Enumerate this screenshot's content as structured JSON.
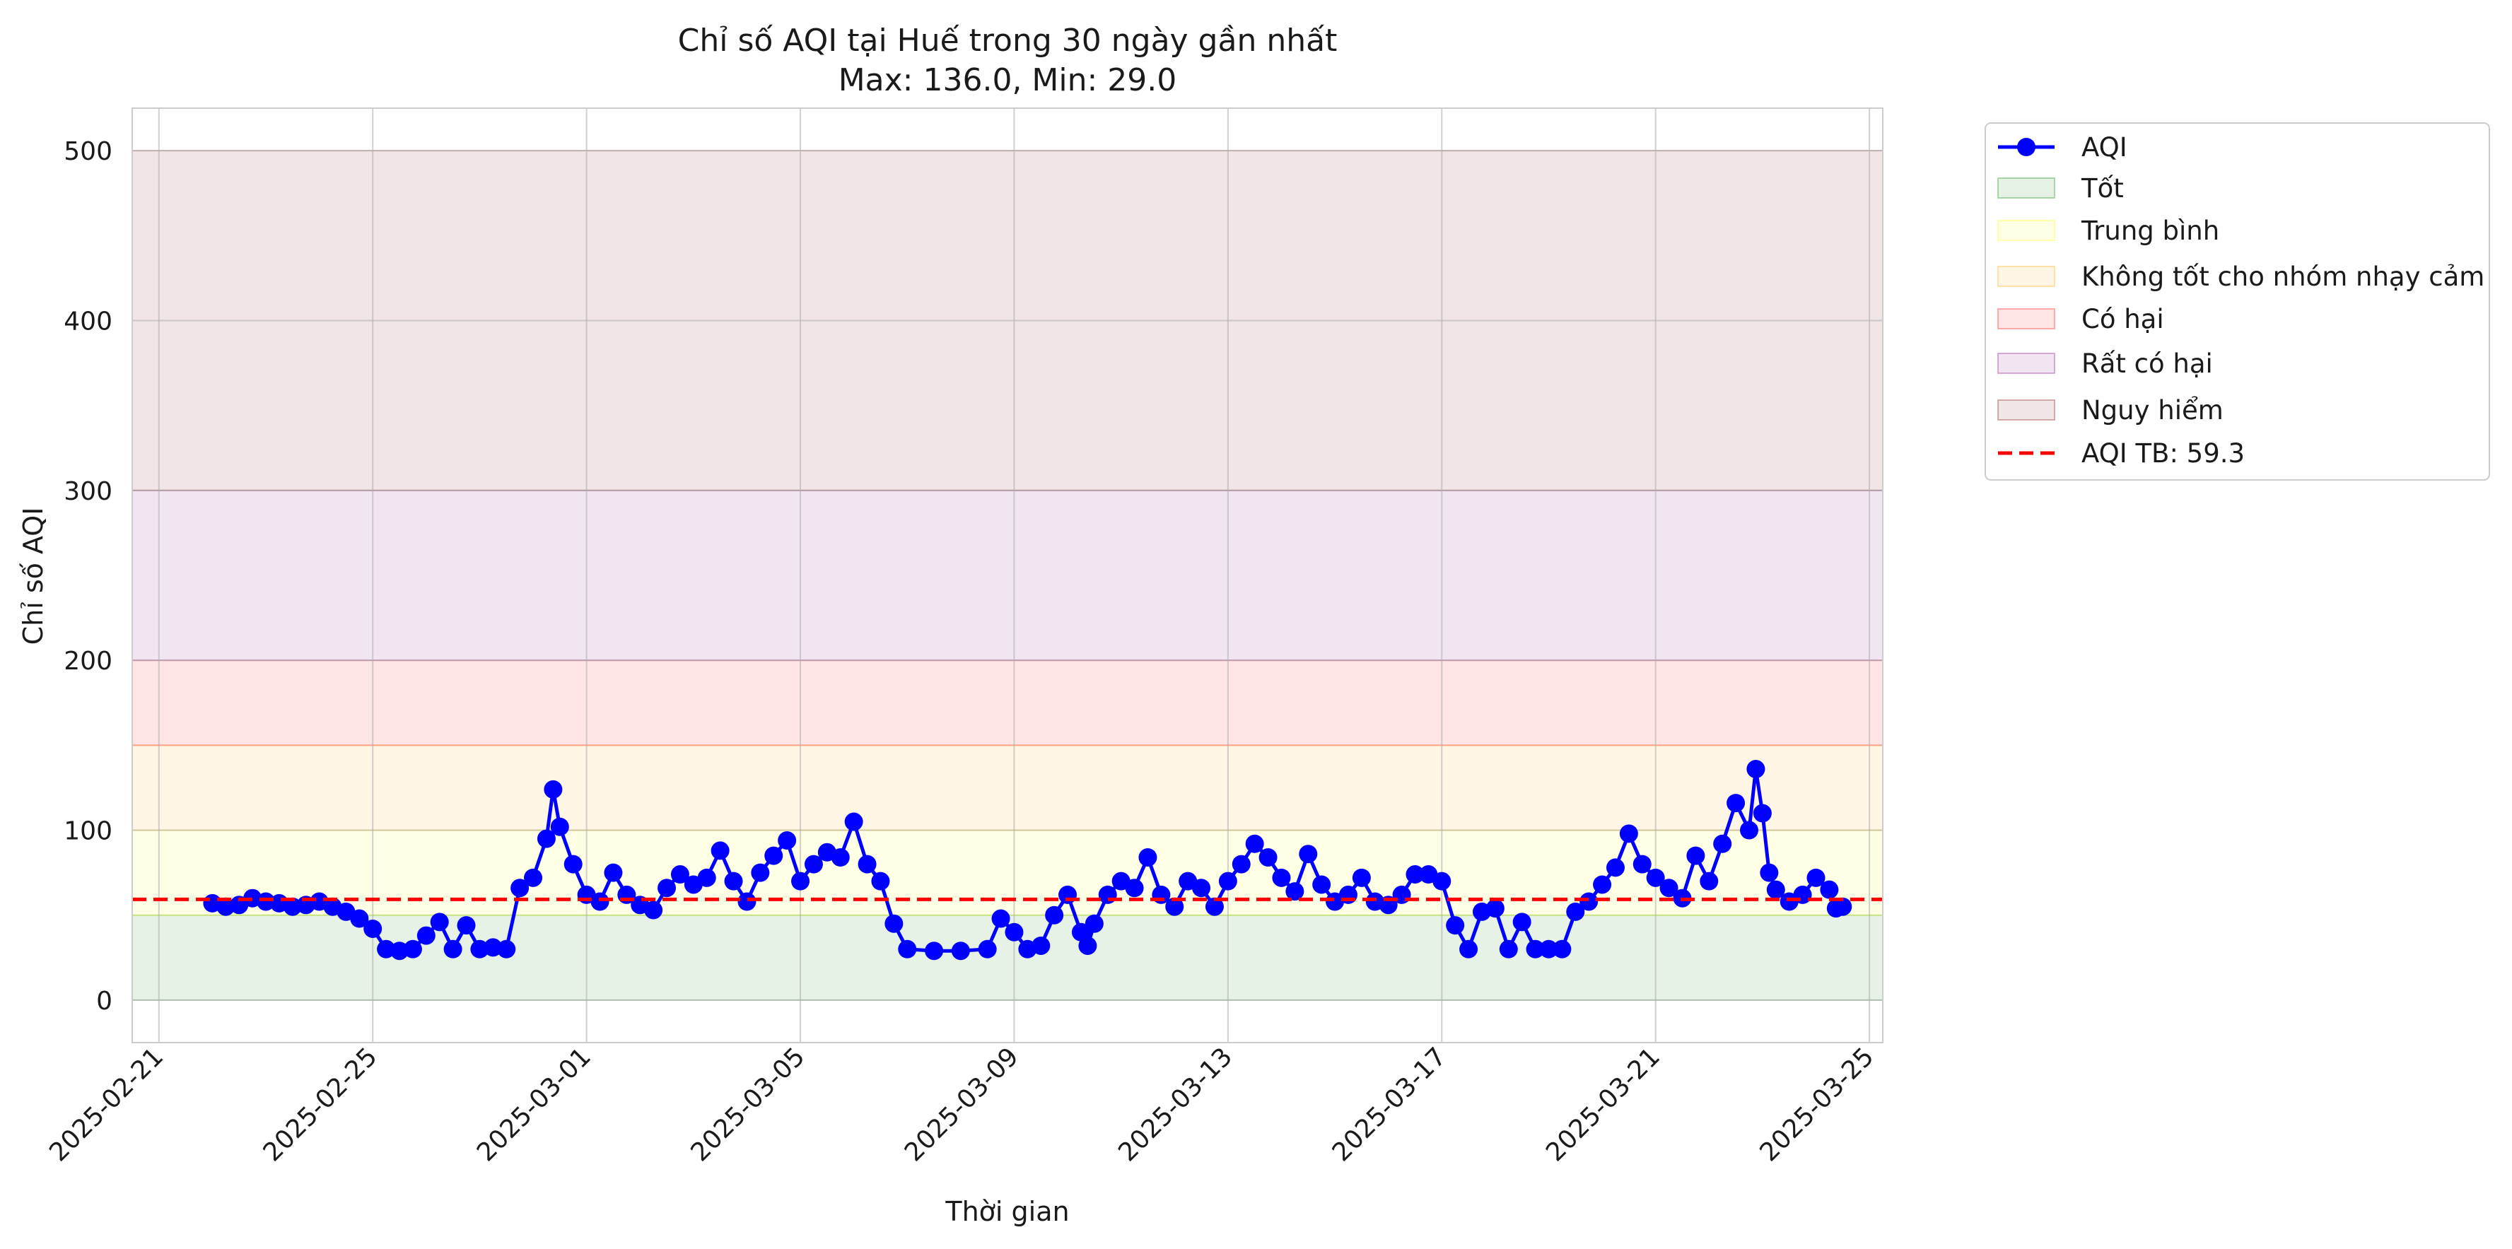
{
  "chart_data": {
    "type": "line",
    "title": "Chỉ số AQI tại Huế trong 30 ngày gần nhất",
    "subtitle": "Max: 136.0, Min: 29.0",
    "xlabel": "Thời gian",
    "ylabel": "Chỉ số AQI",
    "ylim": [
      -25,
      525
    ],
    "xlim": [
      "2025-02-20T12:00",
      "2025-03-25T06:00"
    ],
    "x_ticks": [
      "2025-02-21",
      "2025-02-25",
      "2025-03-01",
      "2025-03-05",
      "2025-03-09",
      "2025-03-13",
      "2025-03-17",
      "2025-03-21",
      "2025-03-25"
    ],
    "y_ticks": [
      0,
      100,
      200,
      300,
      400,
      500
    ],
    "grid": true,
    "legend_position": "outside-top-right",
    "bands": [
      {
        "name": "Tốt",
        "from": 0,
        "to": 50,
        "color": "#008000",
        "opacity": 0.1
      },
      {
        "name": "Trung bình",
        "from": 50,
        "to": 100,
        "color": "#ffff00",
        "opacity": 0.1
      },
      {
        "name": "Không tốt cho nhóm nhạy cảm",
        "from": 100,
        "to": 150,
        "color": "#ffa500",
        "opacity": 0.1
      },
      {
        "name": "Có hại",
        "from": 150,
        "to": 200,
        "color": "#ff0000",
        "opacity": 0.1
      },
      {
        "name": "Rất có hại",
        "from": 200,
        "to": 300,
        "color": "#800080",
        "opacity": 0.1
      },
      {
        "name": "Nguy hiểm",
        "from": 300,
        "to": 500,
        "color": "#800000",
        "opacity": 0.1
      }
    ],
    "mean_line": {
      "name": "AQI TB: 59.3",
      "value": 59.3,
      "color": "#ff0000"
    },
    "series": [
      {
        "name": "AQI",
        "color": "#0000ff",
        "points": [
          [
            "2025-02-22T00:00",
            57
          ],
          [
            "2025-02-22T06:00",
            55
          ],
          [
            "2025-02-22T12:00",
            56
          ],
          [
            "2025-02-22T18:00",
            60
          ],
          [
            "2025-02-23T00:00",
            58
          ],
          [
            "2025-02-23T06:00",
            57
          ],
          [
            "2025-02-23T12:00",
            55
          ],
          [
            "2025-02-23T18:00",
            56
          ],
          [
            "2025-02-24T00:00",
            58
          ],
          [
            "2025-02-24T06:00",
            55
          ],
          [
            "2025-02-24T12:00",
            52
          ],
          [
            "2025-02-24T18:00",
            48
          ],
          [
            "2025-02-25T00:00",
            42
          ],
          [
            "2025-02-25T06:00",
            30
          ],
          [
            "2025-02-25T12:00",
            29
          ],
          [
            "2025-02-25T18:00",
            30
          ],
          [
            "2025-02-26T00:00",
            38
          ],
          [
            "2025-02-26T06:00",
            46
          ],
          [
            "2025-02-26T12:00",
            30
          ],
          [
            "2025-02-26T18:00",
            44
          ],
          [
            "2025-02-27T00:00",
            30
          ],
          [
            "2025-02-27T06:00",
            31
          ],
          [
            "2025-02-27T12:00",
            30
          ],
          [
            "2025-02-27T18:00",
            66
          ],
          [
            "2025-02-28T00:00",
            72
          ],
          [
            "2025-02-28T06:00",
            95
          ],
          [
            "2025-02-28T09:00",
            124
          ],
          [
            "2025-02-28T12:00",
            102
          ],
          [
            "2025-02-28T18:00",
            80
          ],
          [
            "2025-03-01T00:00",
            62
          ],
          [
            "2025-03-01T06:00",
            58
          ],
          [
            "2025-03-01T12:00",
            75
          ],
          [
            "2025-03-01T18:00",
            62
          ],
          [
            "2025-03-02T00:00",
            56
          ],
          [
            "2025-03-02T06:00",
            53
          ],
          [
            "2025-03-02T12:00",
            66
          ],
          [
            "2025-03-02T18:00",
            74
          ],
          [
            "2025-03-03T00:00",
            68
          ],
          [
            "2025-03-03T06:00",
            72
          ],
          [
            "2025-03-03T12:00",
            88
          ],
          [
            "2025-03-03T18:00",
            70
          ],
          [
            "2025-03-04T00:00",
            58
          ],
          [
            "2025-03-04T06:00",
            75
          ],
          [
            "2025-03-04T12:00",
            85
          ],
          [
            "2025-03-04T18:00",
            94
          ],
          [
            "2025-03-05T00:00",
            70
          ],
          [
            "2025-03-05T06:00",
            80
          ],
          [
            "2025-03-05T12:00",
            87
          ],
          [
            "2025-03-05T18:00",
            84
          ],
          [
            "2025-03-06T00:00",
            105
          ],
          [
            "2025-03-06T06:00",
            80
          ],
          [
            "2025-03-06T12:00",
            70
          ],
          [
            "2025-03-06T18:00",
            45
          ],
          [
            "2025-03-07T00:00",
            30
          ],
          [
            "2025-03-07T12:00",
            29
          ],
          [
            "2025-03-08T00:00",
            29
          ],
          [
            "2025-03-08T12:00",
            30
          ],
          [
            "2025-03-08T18:00",
            48
          ],
          [
            "2025-03-09T00:00",
            40
          ],
          [
            "2025-03-09T06:00",
            30
          ],
          [
            "2025-03-09T12:00",
            32
          ],
          [
            "2025-03-09T18:00",
            50
          ],
          [
            "2025-03-10T00:00",
            62
          ],
          [
            "2025-03-10T06:00",
            40
          ],
          [
            "2025-03-10T09:00",
            32
          ],
          [
            "2025-03-10T12:00",
            45
          ],
          [
            "2025-03-10T18:00",
            62
          ],
          [
            "2025-03-11T00:00",
            70
          ],
          [
            "2025-03-11T06:00",
            66
          ],
          [
            "2025-03-11T12:00",
            84
          ],
          [
            "2025-03-11T18:00",
            62
          ],
          [
            "2025-03-12T00:00",
            55
          ],
          [
            "2025-03-12T06:00",
            70
          ],
          [
            "2025-03-12T12:00",
            66
          ],
          [
            "2025-03-12T18:00",
            55
          ],
          [
            "2025-03-13T00:00",
            70
          ],
          [
            "2025-03-13T06:00",
            80
          ],
          [
            "2025-03-13T12:00",
            92
          ],
          [
            "2025-03-13T18:00",
            84
          ],
          [
            "2025-03-14T00:00",
            72
          ],
          [
            "2025-03-14T06:00",
            64
          ],
          [
            "2025-03-14T12:00",
            86
          ],
          [
            "2025-03-14T18:00",
            68
          ],
          [
            "2025-03-15T00:00",
            58
          ],
          [
            "2025-03-15T06:00",
            62
          ],
          [
            "2025-03-15T12:00",
            72
          ],
          [
            "2025-03-15T18:00",
            58
          ],
          [
            "2025-03-16T00:00",
            56
          ],
          [
            "2025-03-16T06:00",
            62
          ],
          [
            "2025-03-16T12:00",
            74
          ],
          [
            "2025-03-16T18:00",
            74
          ],
          [
            "2025-03-17T00:00",
            70
          ],
          [
            "2025-03-17T06:00",
            44
          ],
          [
            "2025-03-17T12:00",
            30
          ],
          [
            "2025-03-17T18:00",
            52
          ],
          [
            "2025-03-18T00:00",
            54
          ],
          [
            "2025-03-18T06:00",
            30
          ],
          [
            "2025-03-18T12:00",
            46
          ],
          [
            "2025-03-18T18:00",
            30
          ],
          [
            "2025-03-19T00:00",
            30
          ],
          [
            "2025-03-19T06:00",
            30
          ],
          [
            "2025-03-19T12:00",
            52
          ],
          [
            "2025-03-19T18:00",
            58
          ],
          [
            "2025-03-20T00:00",
            68
          ],
          [
            "2025-03-20T06:00",
            78
          ],
          [
            "2025-03-20T12:00",
            98
          ],
          [
            "2025-03-20T18:00",
            80
          ],
          [
            "2025-03-21T00:00",
            72
          ],
          [
            "2025-03-21T06:00",
            66
          ],
          [
            "2025-03-21T12:00",
            60
          ],
          [
            "2025-03-21T18:00",
            85
          ],
          [
            "2025-03-22T00:00",
            70
          ],
          [
            "2025-03-22T06:00",
            92
          ],
          [
            "2025-03-22T12:00",
            116
          ],
          [
            "2025-03-22T18:00",
            100
          ],
          [
            "2025-03-22T21:00",
            136
          ],
          [
            "2025-03-23T00:00",
            110
          ],
          [
            "2025-03-23T03:00",
            75
          ],
          [
            "2025-03-23T06:00",
            65
          ],
          [
            "2025-03-23T12:00",
            58
          ],
          [
            "2025-03-23T18:00",
            62
          ],
          [
            "2025-03-24T00:00",
            72
          ],
          [
            "2025-03-24T06:00",
            65
          ],
          [
            "2025-03-24T09:00",
            54
          ],
          [
            "2025-03-24T12:00",
            55
          ]
        ]
      }
    ]
  }
}
